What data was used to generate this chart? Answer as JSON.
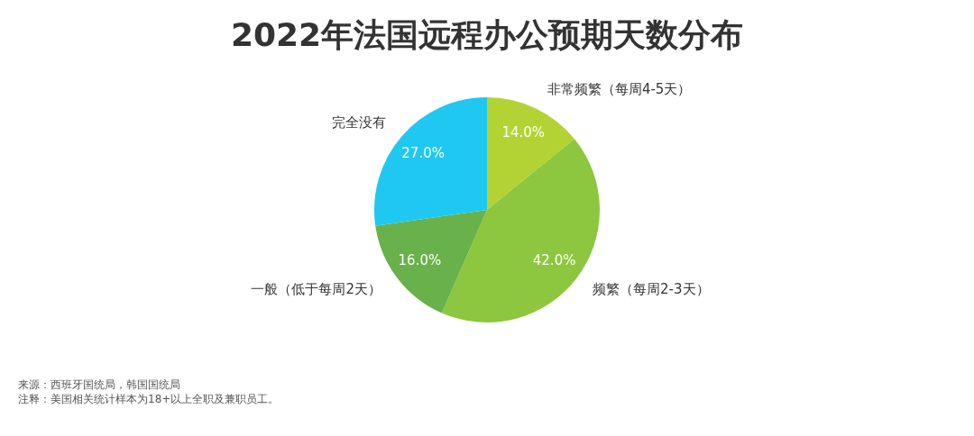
{
  "chart_data": {
    "type": "pie",
    "title": "2022年法国远程办公预期天数分布",
    "categories": [
      "非常频繁（每周4-5天）",
      "频繁（每周2-3天）",
      "一般（低于每周2天）",
      "完全没有"
    ],
    "values": [
      14.0,
      42.0,
      16.0,
      27.0
    ],
    "value_labels": [
      "14.0%",
      "42.0%",
      "16.0%",
      "27.0%"
    ],
    "colors": [
      "#b3d334",
      "#8dc63f",
      "#69b14a",
      "#1fc8f1"
    ],
    "legend": false,
    "annotations": [
      "来源：西班牙国统局，韩国国统局",
      "注释：美国相关统计样本为18+以上全职及兼职员工。"
    ]
  }
}
